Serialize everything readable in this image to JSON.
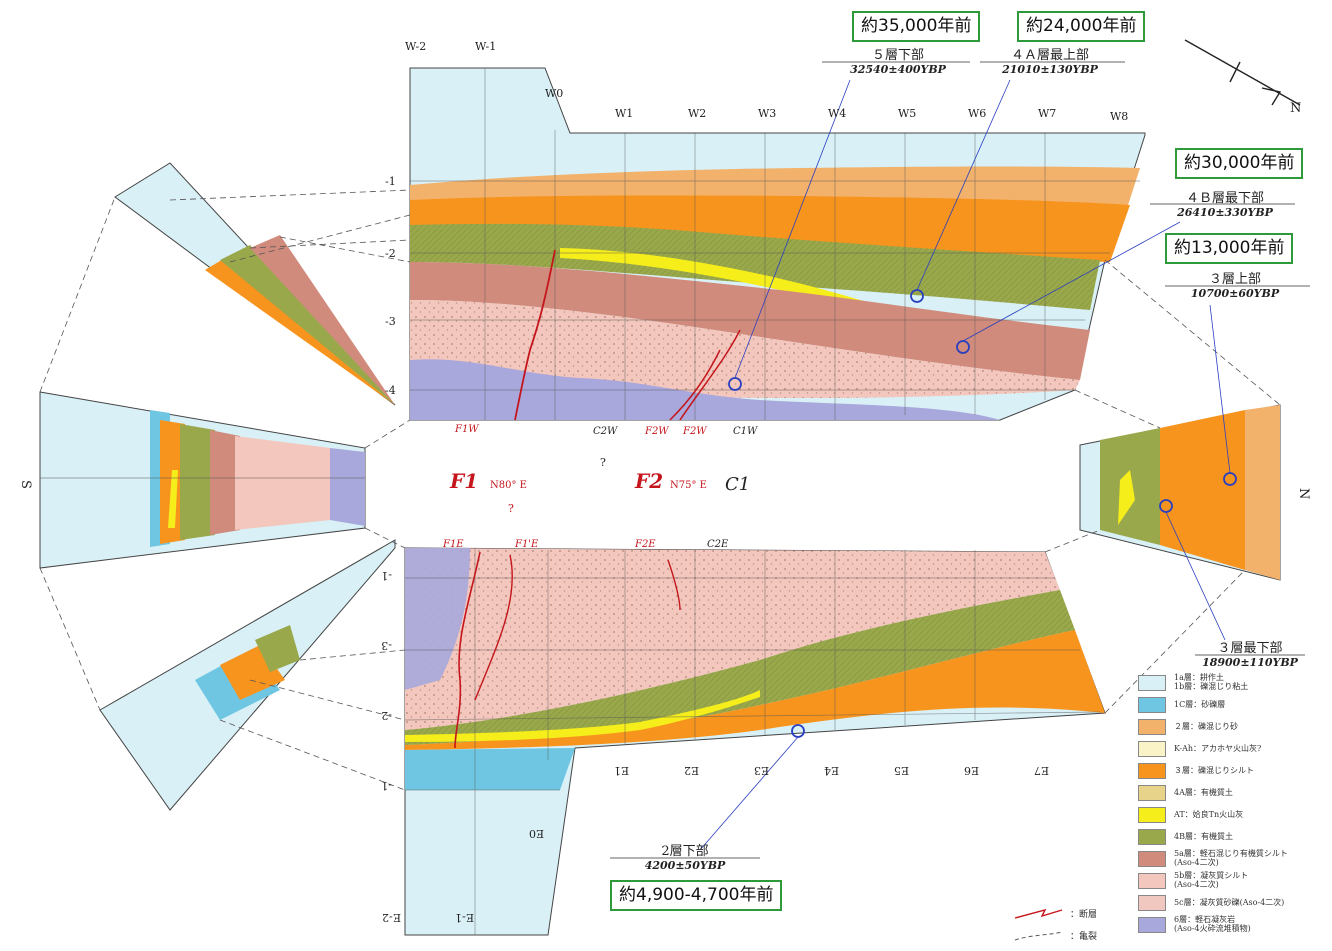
{
  "boxes": {
    "b35": "約35,000年前",
    "b24": "約24,000年前",
    "b30": "約30,000年前",
    "b13": "約13,000年前",
    "b49": "約4,900-4,700年前"
  },
  "samples": {
    "s5": {
      "title": "５層下部",
      "date": "32540±400YBP"
    },
    "s4a": {
      "title": "４Ａ層最上部",
      "date": "21010±130YBP"
    },
    "s4b": {
      "title": "４Ｂ層最下部",
      "date": "26410±330YBP"
    },
    "s3u": {
      "title": "３層上部",
      "date": "10700±60YBP"
    },
    "s3l": {
      "title": "３層最下部",
      "date": "18900±110YBP"
    },
    "s2": {
      "title": "2層下部",
      "date": "4200±50YBP"
    }
  },
  "grid": {
    "west_top": [
      "W-2",
      "W-1"
    ],
    "west": [
      "W0",
      "W1",
      "W2",
      "W3",
      "W4",
      "W5",
      "W6",
      "W7",
      "W8"
    ],
    "east": [
      "E1",
      "E2",
      "E3",
      "E4",
      "E5",
      "E6",
      "E7"
    ],
    "east_extra": [
      "E0",
      "E-1",
      "E-2"
    ],
    "depth_top": [
      "-1",
      "-2",
      "-3",
      "-4"
    ],
    "depth_bottom": [
      "-1",
      "-2",
      "-3",
      "-1"
    ],
    "side_s": "S",
    "side_n": "N"
  },
  "faults": {
    "f1": "F1",
    "f1_strike": "N80° E",
    "f2": "F2",
    "f2_strike": "N75° E",
    "c1": "C1",
    "f1w": "F1W",
    "c2w": "C2W",
    "f2w_a": "F2W",
    "f2w_b": "F2W",
    "c1w": "C1W",
    "f1e": "F1E",
    "f1pe": "F1'E",
    "f2e": "F2E",
    "c2e": "C2E",
    "q1": "?",
    "q2": "?"
  },
  "compass": {
    "north": "N"
  },
  "legend": [
    {
      "text": "1a層：耕作土\n1b層：礫混じり粘土",
      "color": "#d8f0f6"
    },
    {
      "text": "1C層：砂礫層",
      "color": "#6fc6e2"
    },
    {
      "text": "２層：礫混じり砂",
      "color": "#f2b26c"
    },
    {
      "text": "K-Ah：アカホヤ火山灰?",
      "color": "#fbf3c8"
    },
    {
      "text": "３層：礫混じりシルト",
      "color": "#f7941e"
    },
    {
      "text": "4A層：有機質土",
      "color": "#e8d38a"
    },
    {
      "text": "AT：姶良Tn火山灰",
      "color": "#f6ee1a"
    },
    {
      "text": "4B層：有機質土",
      "color": "#9aa84c"
    },
    {
      "text": "5a層：軽石混じり有機質シルト\n(Aso-4二次)",
      "color": "#d18b7c"
    },
    {
      "text": "5b層：凝灰質シルト\n(Aso-4二次)",
      "color": "#f3c7bd"
    },
    {
      "text": "5c層：凝灰質砂礫(Aso-4二次)",
      "color": "#f0c8bf"
    },
    {
      "text": "6層：軽石凝灰岩\n(Aso-4火砕流堆積物)",
      "color": "#a9a8dc"
    }
  ],
  "legend_lines": [
    {
      "text": "：断層"
    },
    {
      "text": "：亀裂"
    }
  ],
  "colors": {
    "c1a": "#d8f0f6",
    "c1c": "#6fc6e2",
    "c2": "#f2b26c",
    "c3": "#f7941e",
    "c4a": "#e8d38a",
    "cAT": "#f6ee1a",
    "c4b": "#9aa84c",
    "c5a": "#d18b7c",
    "c5b": "#f3c7bd",
    "c6": "#a9a8dc",
    "green": "#2e9a3a",
    "fault": "#c4161c"
  }
}
